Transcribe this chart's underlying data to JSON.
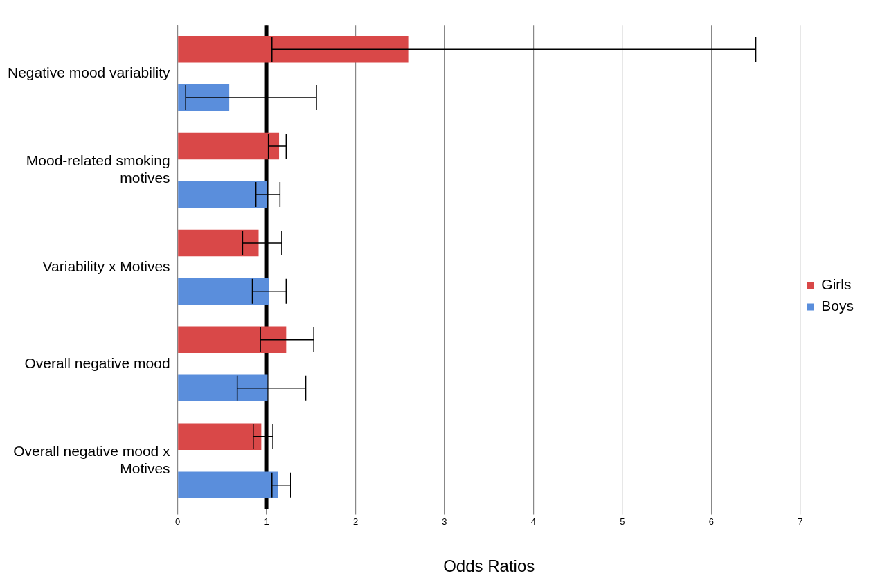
{
  "chart_data": {
    "type": "bar",
    "orientation": "horizontal",
    "xlabel": "Odds Ratios",
    "categories": [
      "Negative mood variability",
      "Mood-related smoking motives",
      "Variability x Motives",
      "Overall negative mood",
      "Overall negative mood x Motives"
    ],
    "series": [
      {
        "name": "Girls",
        "color": "#d94848",
        "values": [
          2.6,
          1.14,
          0.91,
          1.22,
          0.94
        ],
        "errors": [
          [
            1.06,
            6.5
          ],
          [
            1.02,
            1.22
          ],
          [
            0.73,
            1.17
          ],
          [
            0.93,
            1.53
          ],
          [
            0.85,
            1.07
          ]
        ]
      },
      {
        "name": "Boys",
        "color": "#5a8edc",
        "values": [
          0.58,
          1.0,
          1.03,
          1.01,
          1.13
        ],
        "errors": [
          [
            0.09,
            1.56
          ],
          [
            0.88,
            1.15
          ],
          [
            0.84,
            1.22
          ],
          [
            0.67,
            1.44
          ],
          [
            1.06,
            1.27
          ]
        ]
      }
    ],
    "xlim": [
      0,
      7
    ],
    "xticks": [
      0,
      1,
      2,
      3,
      4,
      5,
      6,
      7
    ],
    "ref_lines": [
      {
        "axis": "x",
        "value": 1,
        "color": "#000000"
      }
    ],
    "grid": "x",
    "legend": "right"
  }
}
